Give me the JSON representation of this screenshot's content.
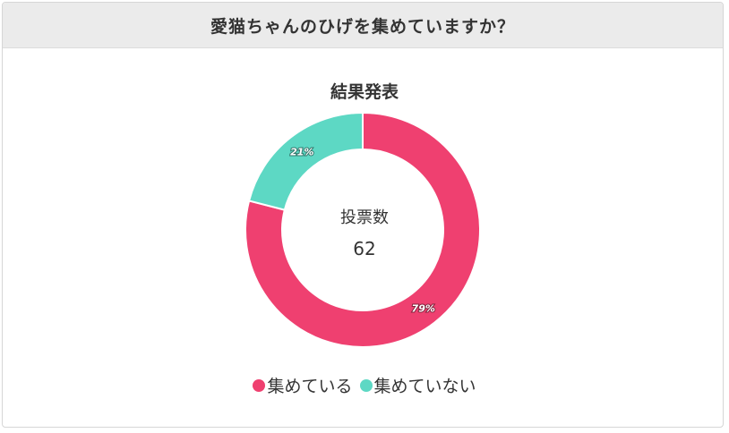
{
  "header": {
    "title": "愛猫ちゃんのひげを集めていますか？"
  },
  "chart_data": {
    "type": "pie",
    "variant": "donut",
    "title": "結果発表",
    "center_label": "投票数",
    "center_value": "62",
    "categories": [
      "集めている",
      "集めていない"
    ],
    "values": [
      79,
      21
    ],
    "value_labels": [
      "79%",
      "21%"
    ],
    "colors": [
      "#ef4070",
      "#5dd8c4"
    ],
    "total_votes": 62,
    "legend_position": "bottom"
  },
  "legend": [
    {
      "label": "集めている",
      "color": "#ef4070"
    },
    {
      "label": "集めていない",
      "color": "#5dd8c4"
    }
  ]
}
